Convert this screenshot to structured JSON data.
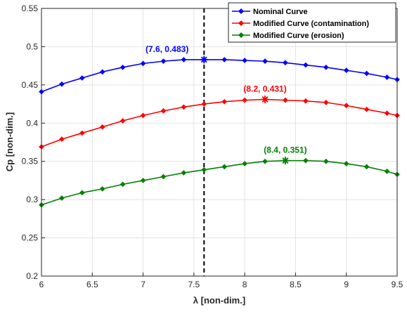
{
  "chart_data": {
    "type": "line",
    "xlabel": "λ [non-dim.]",
    "ylabel": "Cp [non-dim.]",
    "xlim": [
      6,
      9.5
    ],
    "ylim": [
      0.2,
      0.55
    ],
    "xticks": [
      6,
      6.5,
      7,
      7.5,
      8,
      8.5,
      9,
      9.5
    ],
    "xtick_labels": [
      "6",
      "6.5",
      "7",
      "7.5",
      "8",
      "8.5",
      "9",
      "9.5"
    ],
    "yticks": [
      0.2,
      0.25,
      0.3,
      0.35,
      0.4,
      0.45,
      0.5,
      0.55
    ],
    "ytick_labels": [
      "0.2",
      "0.25",
      "0.3",
      "0.35",
      "0.4",
      "0.45",
      "0.5",
      "0.55"
    ],
    "grid": true,
    "legend_position": "top-right",
    "vertical_line": {
      "x": 7.6,
      "style": "dashed",
      "color": "#000000"
    },
    "series": [
      {
        "name": "Nominal Curve",
        "color": "#0000ff",
        "marker": "diamond",
        "x": [
          6.0,
          6.2,
          6.4,
          6.6,
          6.8,
          7.0,
          7.2,
          7.4,
          7.6,
          7.8,
          8.0,
          8.2,
          8.4,
          8.6,
          8.8,
          9.0,
          9.2,
          9.4,
          9.5
        ],
        "y": [
          0.441,
          0.451,
          0.459,
          0.467,
          0.473,
          0.478,
          0.481,
          0.483,
          0.483,
          0.483,
          0.482,
          0.481,
          0.479,
          0.476,
          0.473,
          0.469,
          0.465,
          0.46,
          0.457
        ]
      },
      {
        "name": "Modified Curve (contamination)",
        "color": "#ff0000",
        "marker": "diamond",
        "x": [
          6.0,
          6.2,
          6.4,
          6.6,
          6.8,
          7.0,
          7.2,
          7.4,
          7.6,
          7.8,
          8.0,
          8.2,
          8.4,
          8.6,
          8.8,
          9.0,
          9.2,
          9.4,
          9.5
        ],
        "y": [
          0.369,
          0.379,
          0.387,
          0.395,
          0.403,
          0.41,
          0.416,
          0.421,
          0.425,
          0.428,
          0.43,
          0.431,
          0.43,
          0.429,
          0.427,
          0.423,
          0.418,
          0.413,
          0.41
        ]
      },
      {
        "name": "Modified Curve (erosion)",
        "color": "#008000",
        "marker": "diamond",
        "x": [
          6.0,
          6.2,
          6.4,
          6.6,
          6.8,
          7.0,
          7.2,
          7.4,
          7.6,
          7.8,
          8.0,
          8.2,
          8.4,
          8.6,
          8.8,
          9.0,
          9.2,
          9.4,
          9.5
        ],
        "y": [
          0.293,
          0.302,
          0.309,
          0.314,
          0.32,
          0.325,
          0.33,
          0.335,
          0.339,
          0.343,
          0.347,
          0.35,
          0.351,
          0.351,
          0.35,
          0.347,
          0.343,
          0.337,
          0.333
        ]
      }
    ],
    "annotations": [
      {
        "text": "(7.6, 0.483)",
        "x": 7.6,
        "y": 0.483,
        "color": "#0000ff",
        "label_side": "left"
      },
      {
        "text": "(8.2, 0.431)",
        "x": 8.2,
        "y": 0.431,
        "color": "#ff0000",
        "label_side": "center"
      },
      {
        "text": "(8.4, 0.351)",
        "x": 8.4,
        "y": 0.351,
        "color": "#008000",
        "label_side": "center"
      }
    ]
  }
}
